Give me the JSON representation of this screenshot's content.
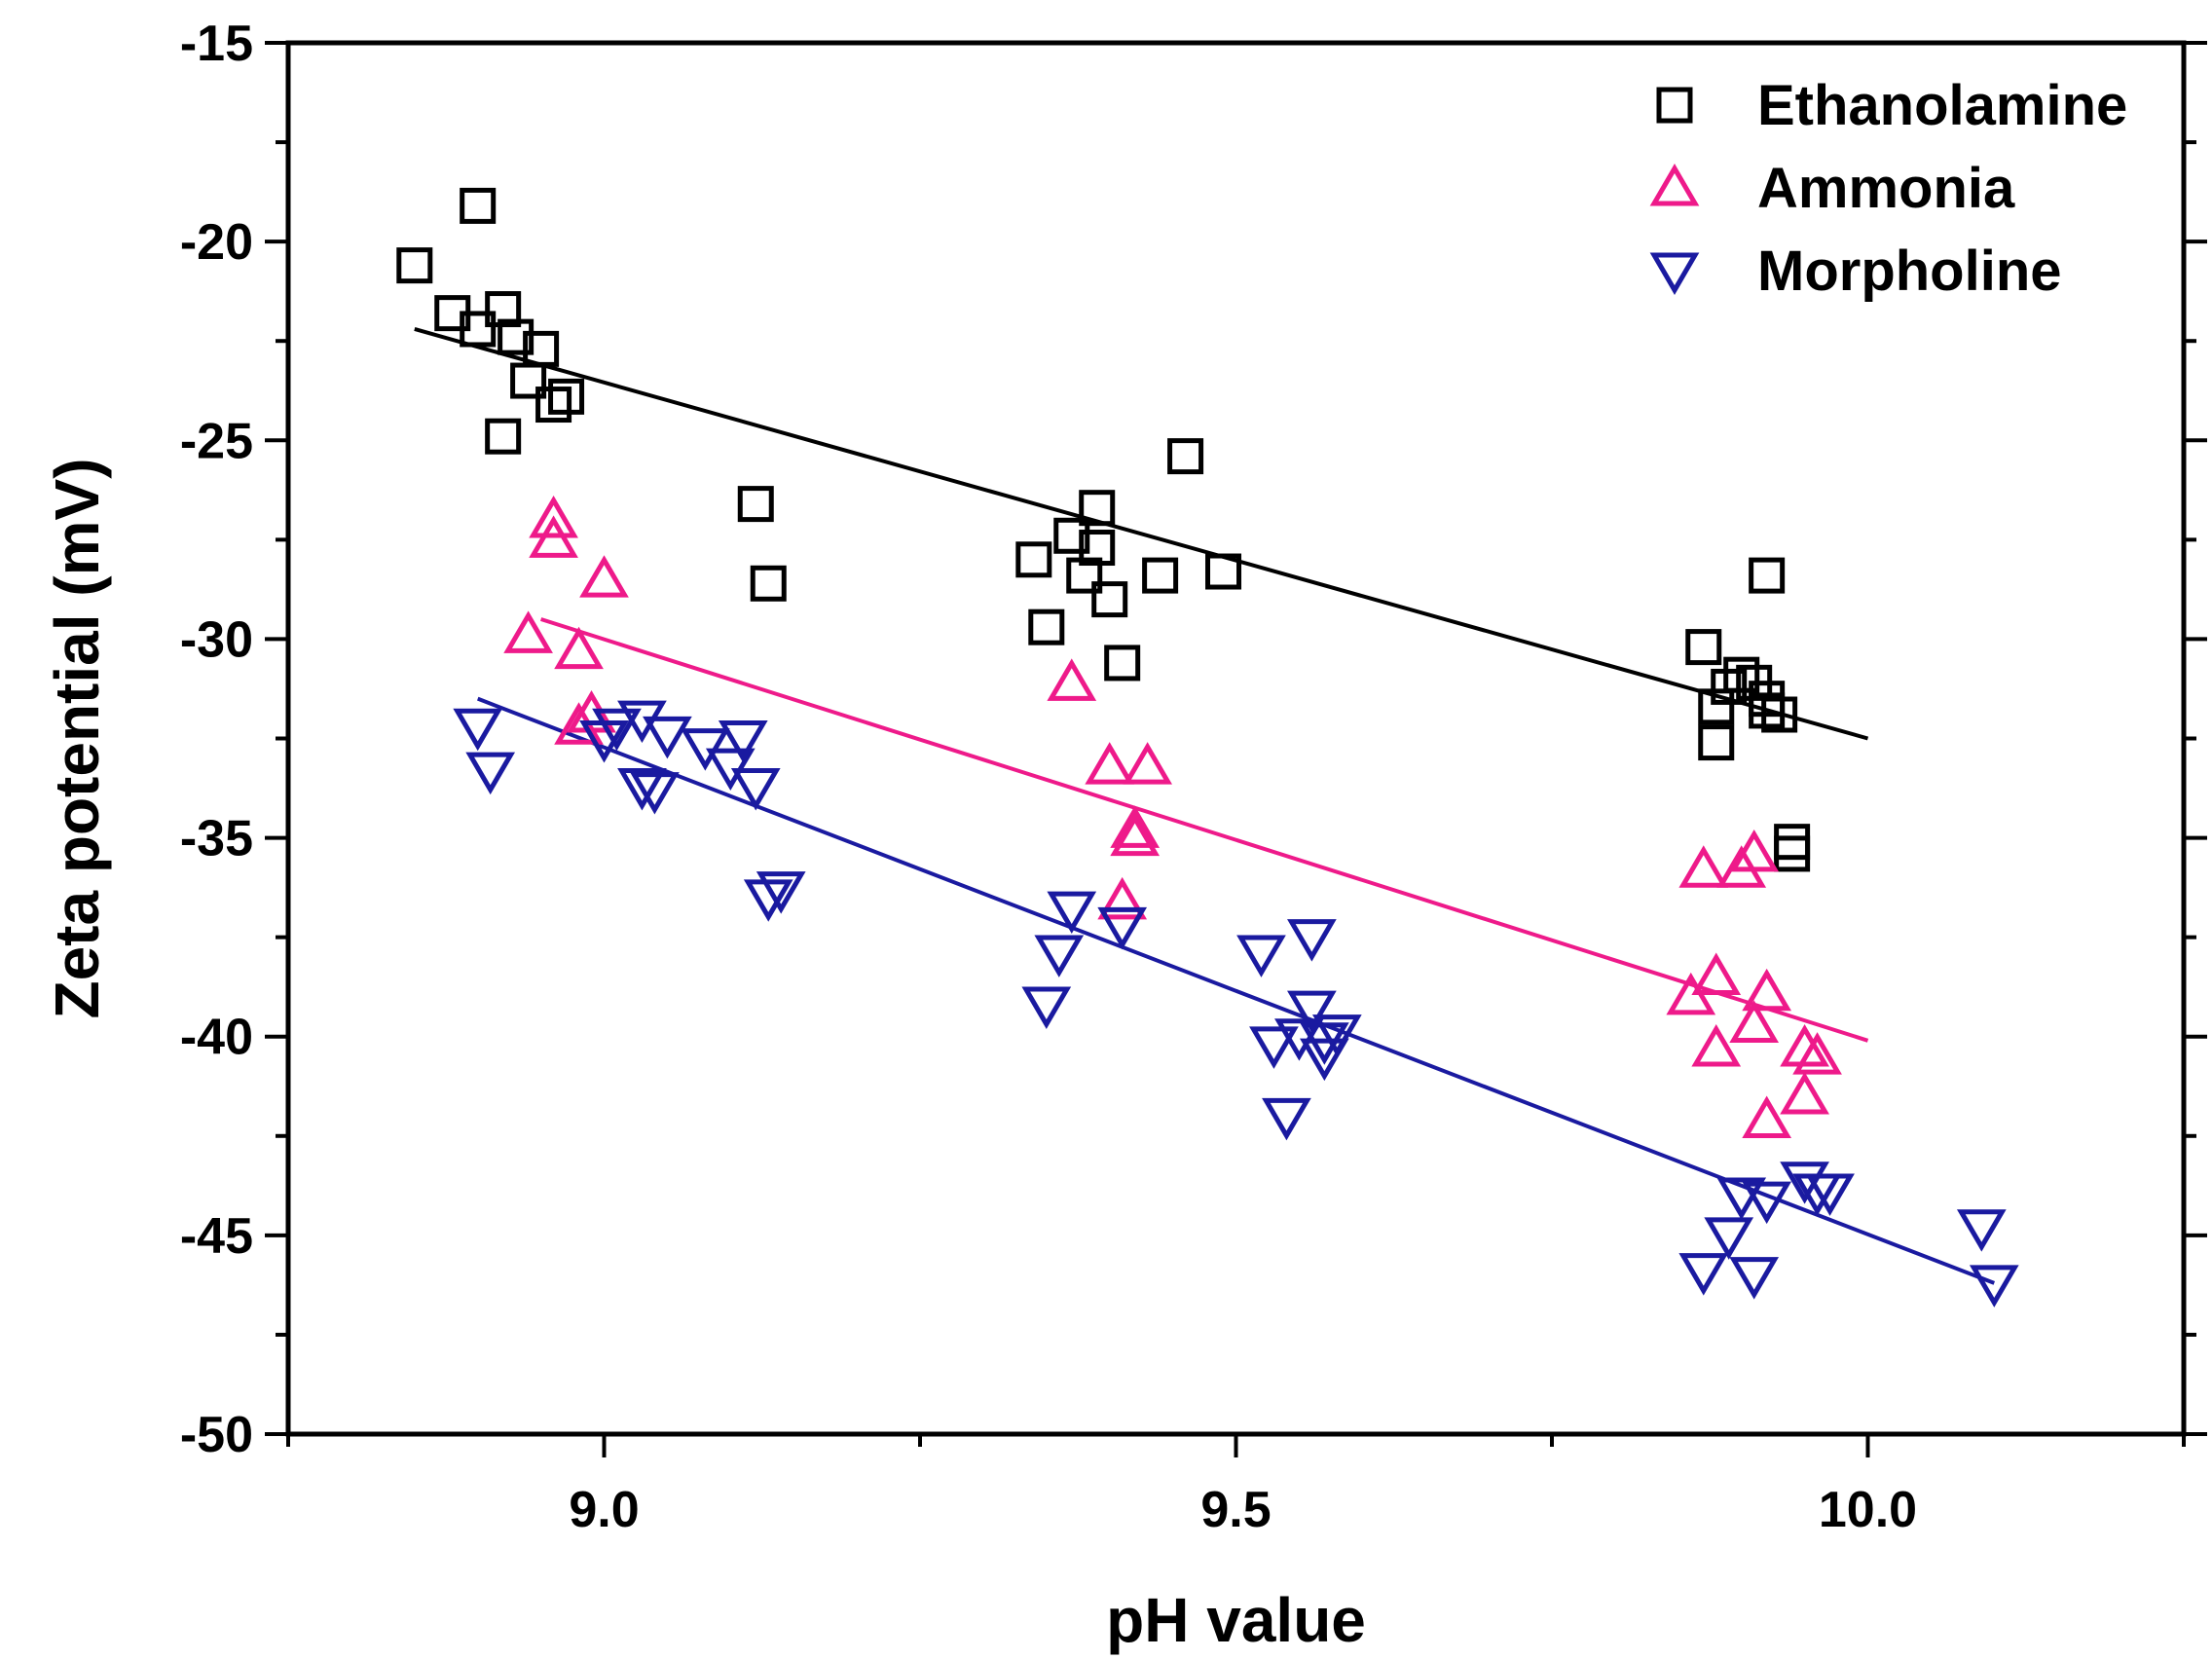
{
  "chart_data": {
    "type": "scatter",
    "title": "",
    "xlabel": "pH value",
    "ylabel": "Zeta potential (mV)",
    "xlim": [
      8.75,
      10.25
    ],
    "ylim": [
      -50,
      -15
    ],
    "x_ticks": [
      9.0,
      9.5,
      10.0
    ],
    "x_tick_labels": [
      "9.0",
      "9.5",
      "10.0"
    ],
    "y_ticks": [
      -50,
      -45,
      -40,
      -35,
      -30,
      -25,
      -20,
      -15
    ],
    "y_tick_labels": [
      "-50",
      "-45",
      "-40",
      "-35",
      "-30",
      "-25",
      "-20",
      "-15"
    ],
    "legend_position": "top-right",
    "series": [
      {
        "name": "Ethanolamine",
        "marker": "square",
        "color": "#000000",
        "fit": {
          "x": [
            8.85,
            10.0
          ],
          "y": [
            -22.2,
            -32.5
          ]
        },
        "points": [
          [
            8.85,
            -20.6
          ],
          [
            8.88,
            -21.8
          ],
          [
            8.9,
            -19.1
          ],
          [
            8.9,
            -22.2
          ],
          [
            8.92,
            -21.7
          ],
          [
            8.93,
            -22.4
          ],
          [
            8.94,
            -23.5
          ],
          [
            8.95,
            -22.7
          ],
          [
            8.96,
            -24.1
          ],
          [
            8.97,
            -23.9
          ],
          [
            8.92,
            -24.9
          ],
          [
            9.12,
            -26.6
          ],
          [
            9.13,
            -28.6
          ],
          [
            9.34,
            -28.0
          ],
          [
            9.35,
            -29.7
          ],
          [
            9.37,
            -27.4
          ],
          [
            9.38,
            -28.4
          ],
          [
            9.39,
            -26.7
          ],
          [
            9.39,
            -27.7
          ],
          [
            9.4,
            -29.0
          ],
          [
            9.41,
            -30.6
          ],
          [
            9.44,
            -28.4
          ],
          [
            9.46,
            -25.4
          ],
          [
            9.49,
            -28.3
          ],
          [
            9.87,
            -30.2
          ],
          [
            9.88,
            -31.7
          ],
          [
            9.89,
            -31.2
          ],
          [
            9.9,
            -30.9
          ],
          [
            9.91,
            -31.1
          ],
          [
            9.92,
            -31.5
          ],
          [
            9.92,
            -31.8
          ],
          [
            9.93,
            -31.9
          ],
          [
            9.88,
            -32.6
          ],
          [
            9.92,
            -28.4
          ],
          [
            9.94,
            -35.1
          ],
          [
            9.94,
            -35.4
          ]
        ]
      },
      {
        "name": "Ammonia",
        "marker": "triangle-up",
        "color": "#ee1a8a",
        "fit": {
          "x": [
            8.95,
            10.0
          ],
          "y": [
            -29.5,
            -40.1
          ]
        },
        "points": [
          [
            8.96,
            -27.0
          ],
          [
            8.96,
            -27.5
          ],
          [
            8.94,
            -29.9
          ],
          [
            8.98,
            -30.3
          ],
          [
            9.0,
            -28.5
          ],
          [
            8.98,
            -32.2
          ],
          [
            8.99,
            -31.9
          ],
          [
            9.37,
            -31.1
          ],
          [
            9.4,
            -33.2
          ],
          [
            9.43,
            -33.2
          ],
          [
            9.42,
            -34.8
          ],
          [
            9.42,
            -35.0
          ],
          [
            9.41,
            -36.6
          ],
          [
            9.87,
            -35.8
          ],
          [
            9.9,
            -35.8
          ],
          [
            9.91,
            -35.4
          ],
          [
            9.86,
            -39.0
          ],
          [
            9.88,
            -38.5
          ],
          [
            9.88,
            -40.3
          ],
          [
            9.91,
            -39.7
          ],
          [
            9.92,
            -38.9
          ],
          [
            9.95,
            -40.3
          ],
          [
            9.96,
            -40.5
          ],
          [
            9.95,
            -41.5
          ],
          [
            9.92,
            -42.1
          ]
        ]
      },
      {
        "name": "Morpholine",
        "marker": "triangle-down",
        "color": "#1a1aa0",
        "fit": {
          "x": [
            8.9,
            10.1
          ],
          "y": [
            -31.5,
            -46.2
          ]
        },
        "points": [
          [
            8.9,
            -32.2
          ],
          [
            8.91,
            -33.3
          ],
          [
            9.0,
            -32.5
          ],
          [
            9.01,
            -32.2
          ],
          [
            9.03,
            -32.0
          ],
          [
            9.03,
            -33.7
          ],
          [
            9.05,
            -32.4
          ],
          [
            9.04,
            -33.8
          ],
          [
            9.08,
            -32.7
          ],
          [
            9.1,
            -33.2
          ],
          [
            9.11,
            -32.5
          ],
          [
            9.12,
            -33.7
          ],
          [
            9.13,
            -36.5
          ],
          [
            9.14,
            -36.3
          ],
          [
            9.35,
            -39.2
          ],
          [
            9.36,
            -37.9
          ],
          [
            9.37,
            -36.8
          ],
          [
            9.41,
            -37.2
          ],
          [
            9.52,
            -37.9
          ],
          [
            9.54,
            -42.0
          ],
          [
            9.53,
            -40.2
          ],
          [
            9.55,
            -40.0
          ],
          [
            9.56,
            -39.3
          ],
          [
            9.57,
            -40.1
          ],
          [
            9.57,
            -40.5
          ],
          [
            9.58,
            -39.9
          ],
          [
            9.56,
            -37.5
          ],
          [
            9.87,
            -45.9
          ],
          [
            9.89,
            -45.0
          ],
          [
            9.9,
            -44.0
          ],
          [
            9.91,
            -46.0
          ],
          [
            9.92,
            -44.1
          ],
          [
            9.95,
            -43.6
          ],
          [
            9.96,
            -43.9
          ],
          [
            9.97,
            -43.9
          ],
          [
            10.09,
            -44.8
          ],
          [
            10.1,
            -46.2
          ]
        ]
      }
    ]
  }
}
